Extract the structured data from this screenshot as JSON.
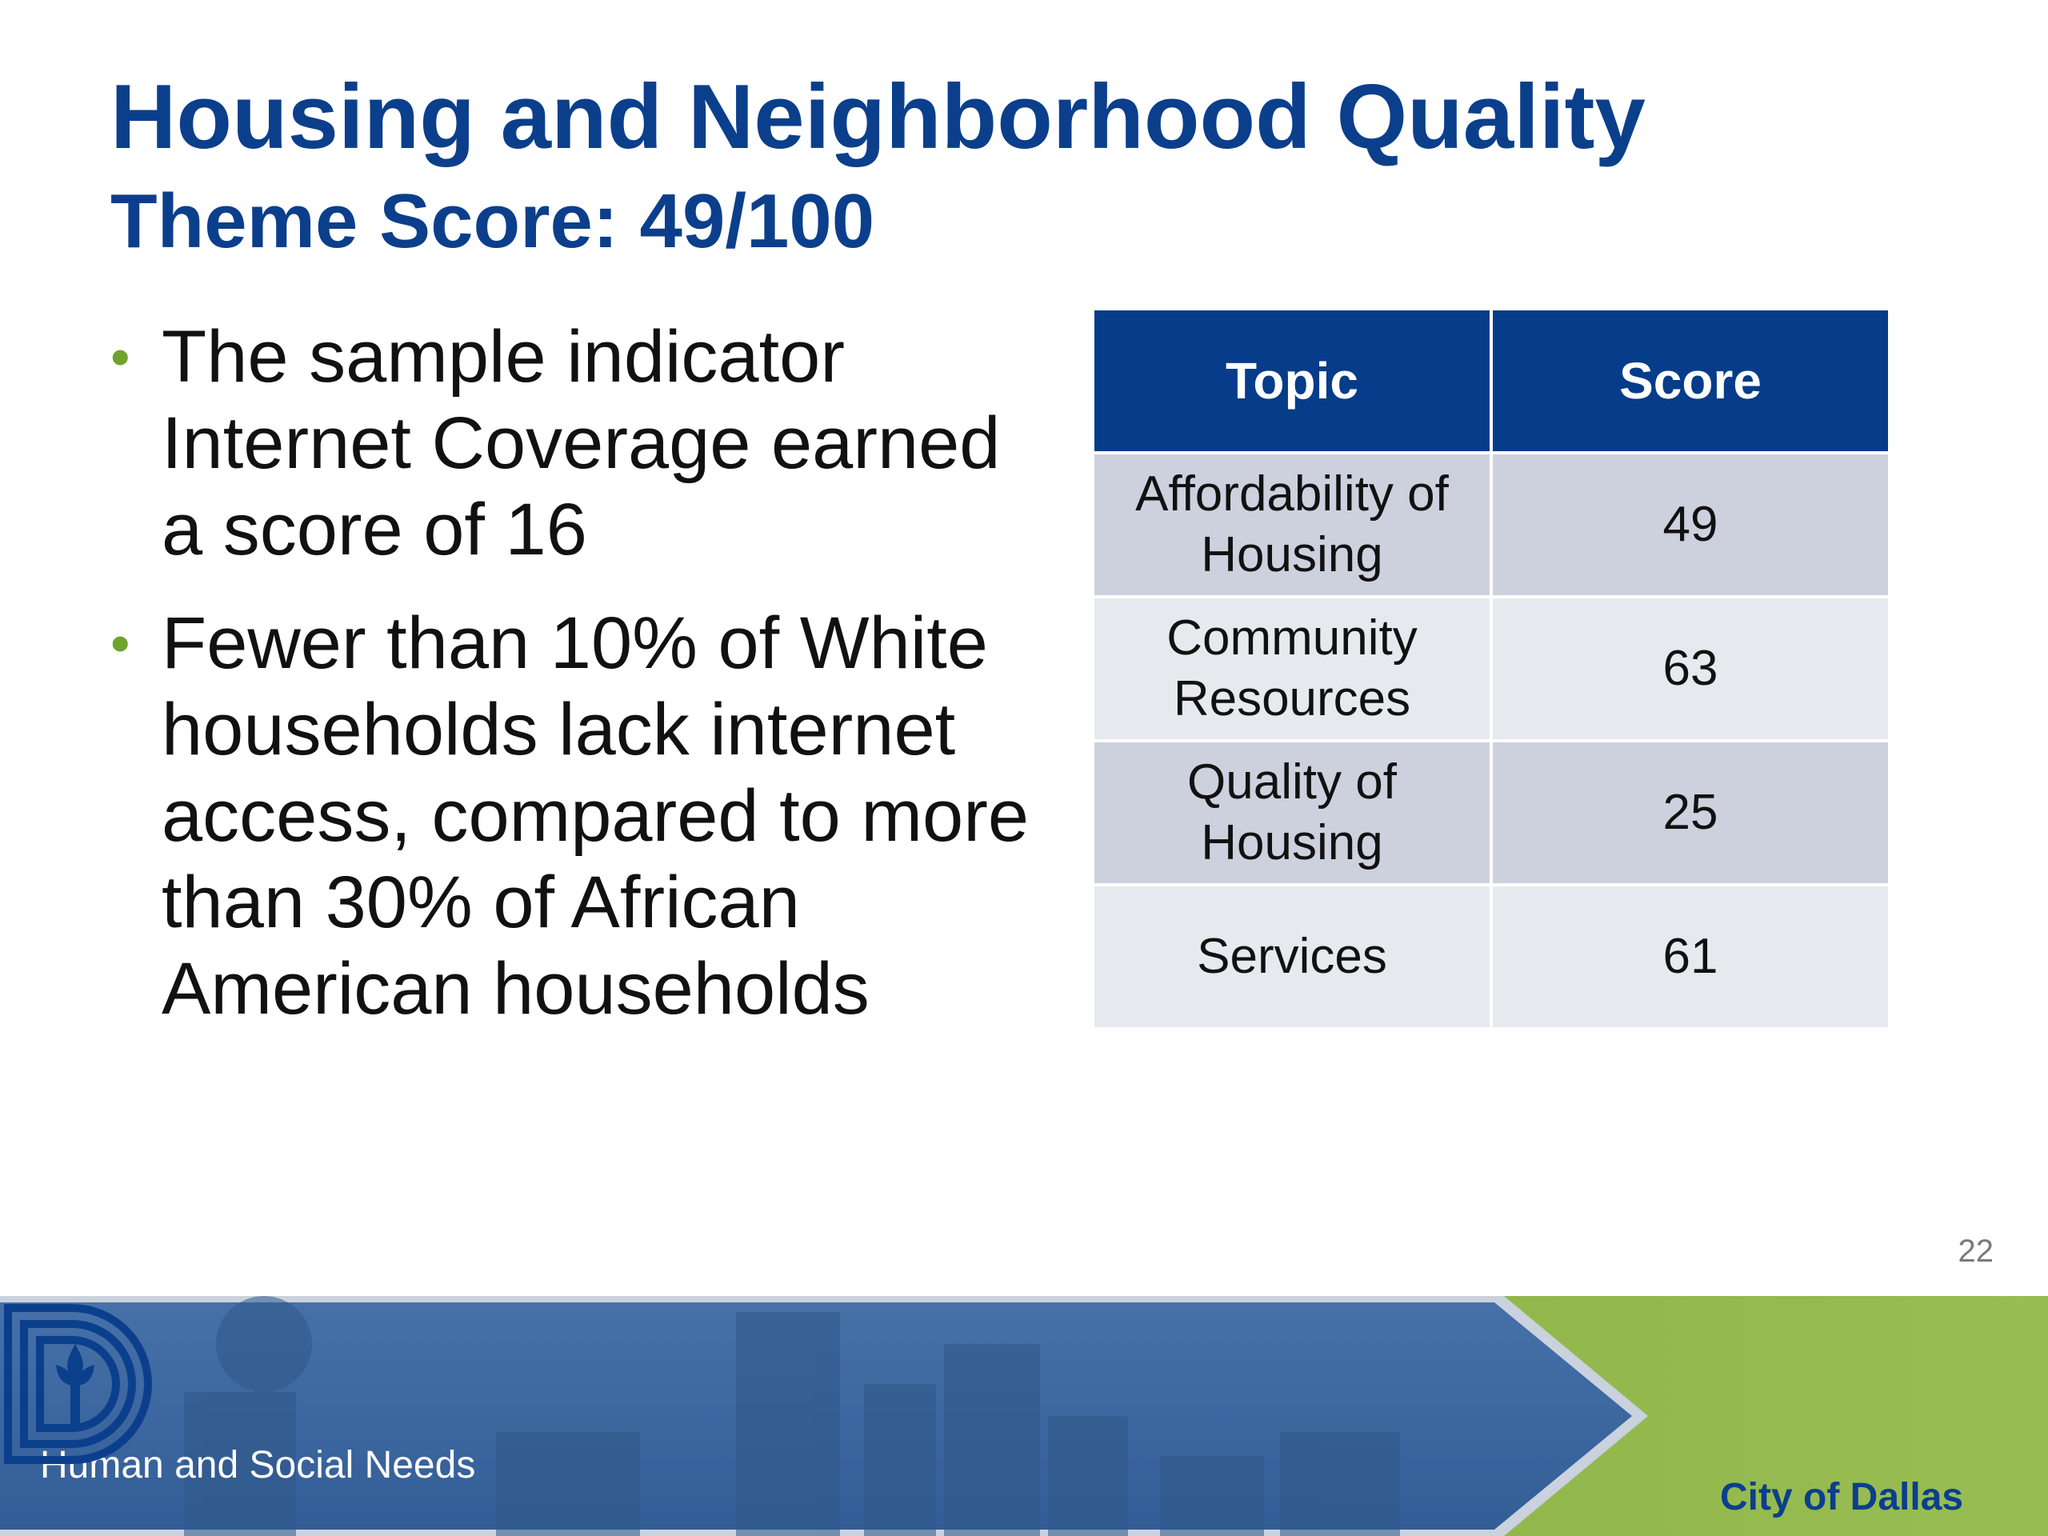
{
  "slide": {
    "title": "Housing and Neighborhood Quality",
    "subtitle": "Theme Score: 49/100",
    "bullets": [
      "The sample indicator Internet Coverage earned a score of 16",
      "Fewer than 10% of White households lack internet access, compared to more than 30% of African American households"
    ],
    "bullet_symbol": "•",
    "page_number": "22"
  },
  "table": {
    "headers": [
      "Topic",
      "Score"
    ],
    "rows": [
      {
        "topic": "Affordability of Housing",
        "score": "49"
      },
      {
        "topic": "Community Resources",
        "score": "63"
      },
      {
        "topic": "Quality of Housing",
        "score": "25"
      },
      {
        "topic": "Services",
        "score": "61"
      }
    ]
  },
  "footer": {
    "label": "Human and Social Needs",
    "organization": "City of Dallas"
  },
  "colors": {
    "title": "#0b3f8c",
    "header_fill": "#063c8a",
    "row_dark": "#cdd1de",
    "row_light": "#e8e9ef",
    "bullet": "#6ea32d",
    "footer_blue": "#3a649e",
    "footer_green": "#8db347"
  }
}
